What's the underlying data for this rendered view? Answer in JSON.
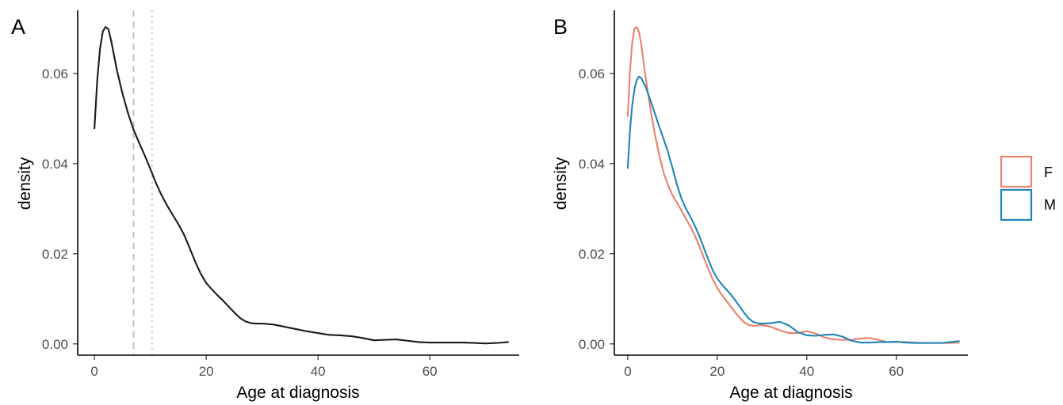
{
  "chart_data": [
    {
      "panel": "A",
      "type": "line",
      "title": "",
      "xlabel": "Age at diagnosis",
      "ylabel": "density",
      "xlim": [
        -3,
        76
      ],
      "ylim": [
        -0.0025,
        0.074
      ],
      "xticks": [
        "0",
        "20",
        "40",
        "60"
      ],
      "yticks": [
        "0.00",
        "0.02",
        "0.04",
        "0.06"
      ],
      "grid": false,
      "reference_lines": [
        {
          "x": 7,
          "style": "dashed",
          "color": "#bdbdbd"
        },
        {
          "x": 10.3,
          "style": "dotted",
          "color": "#bdbdbd"
        }
      ],
      "series": [
        {
          "color": "#1a1a1a",
          "x": [
            0,
            0.5,
            1,
            1.5,
            2,
            2.5,
            3,
            4,
            5,
            6,
            7,
            8,
            9,
            10,
            11,
            12,
            13,
            14,
            15,
            16,
            17,
            18,
            19,
            20,
            21,
            22,
            23,
            24,
            25,
            26,
            27,
            28,
            29,
            30,
            32,
            34,
            36,
            38,
            40,
            42,
            44,
            46,
            48,
            50,
            52,
            54,
            56,
            58,
            60,
            62,
            64,
            66,
            68,
            70,
            72,
            74
          ],
          "y": [
            0.0478,
            0.0585,
            0.0655,
            0.0693,
            0.0703,
            0.0698,
            0.0672,
            0.0608,
            0.0556,
            0.0512,
            0.0475,
            0.0446,
            0.0418,
            0.0388,
            0.0357,
            0.033,
            0.0307,
            0.0286,
            0.0266,
            0.0243,
            0.0214,
            0.0183,
            0.0156,
            0.0135,
            0.0121,
            0.0108,
            0.0096,
            0.0083,
            0.007,
            0.0058,
            0.005,
            0.0046,
            0.0045,
            0.0045,
            0.0043,
            0.0038,
            0.0033,
            0.0028,
            0.0024,
            0.002,
            0.0019,
            0.0017,
            0.0013,
            0.0008,
            0.0009,
            0.001,
            0.0007,
            0.0004,
            0.0003,
            0.0003,
            0.0003,
            0.0003,
            0.0002,
            0.0001,
            0.0002,
            0.0004
          ]
        }
      ]
    },
    {
      "panel": "B",
      "type": "line",
      "title": "",
      "xlabel": "Age at diagnosis",
      "ylabel": "density",
      "xlim": [
        -3,
        76
      ],
      "ylim": [
        -0.0025,
        0.074
      ],
      "xticks": [
        "0",
        "20",
        "40",
        "60"
      ],
      "yticks": [
        "0.00",
        "0.02",
        "0.04",
        "0.06"
      ],
      "grid": false,
      "legend": {
        "position": "right",
        "entries": [
          "F",
          "M"
        ]
      },
      "series": [
        {
          "name": "F",
          "color": "#e8826a",
          "x": [
            0,
            0.5,
            1,
            1.5,
            2,
            2.5,
            3,
            4,
            5,
            6,
            7,
            8,
            9,
            10,
            11,
            12,
            13,
            14,
            15,
            16,
            17,
            18,
            19,
            20,
            21,
            22,
            23,
            24,
            25,
            26,
            27,
            28,
            29,
            30,
            32,
            34,
            36,
            38,
            40,
            42,
            44,
            46,
            48,
            50,
            52,
            54,
            56,
            58,
            60,
            62,
            64,
            66,
            68,
            70,
            72,
            74
          ],
          "y": [
            0.0505,
            0.0607,
            0.0668,
            0.07,
            0.0703,
            0.0692,
            0.0665,
            0.059,
            0.0525,
            0.0468,
            0.042,
            0.038,
            0.0352,
            0.033,
            0.0313,
            0.0296,
            0.0278,
            0.026,
            0.024,
            0.0217,
            0.0191,
            0.0166,
            0.0143,
            0.0124,
            0.0109,
            0.0096,
            0.0083,
            0.007,
            0.0058,
            0.0048,
            0.0042,
            0.004,
            0.0041,
            0.0042,
            0.0038,
            0.003,
            0.0024,
            0.0024,
            0.0028,
            0.0023,
            0.0014,
            0.001,
            0.0009,
            0.0009,
            0.0012,
            0.0013,
            0.0009,
            0.0004,
            0.0004,
            0.0004,
            0.0003,
            0.0002,
            0.0002,
            0.0002,
            0.0002,
            0.0003
          ]
        },
        {
          "name": "M",
          "color": "#1f85b8",
          "x": [
            0,
            0.5,
            1,
            1.5,
            2,
            2.5,
            3,
            4,
            5,
            6,
            7,
            8,
            9,
            10,
            11,
            12,
            13,
            14,
            15,
            16,
            17,
            18,
            19,
            20,
            21,
            22,
            23,
            24,
            25,
            26,
            27,
            28,
            29,
            30,
            32,
            34,
            36,
            38,
            40,
            42,
            44,
            46,
            48,
            50,
            52,
            54,
            56,
            58,
            60,
            62,
            64,
            66,
            68,
            70,
            72,
            74
          ],
          "y": [
            0.039,
            0.0475,
            0.053,
            0.0565,
            0.0585,
            0.0593,
            0.059,
            0.057,
            0.0542,
            0.0513,
            0.0483,
            0.0455,
            0.0425,
            0.039,
            0.0353,
            0.0322,
            0.03,
            0.0282,
            0.0262,
            0.0239,
            0.0213,
            0.0187,
            0.0163,
            0.0145,
            0.0132,
            0.0121,
            0.011,
            0.0097,
            0.0083,
            0.0069,
            0.0057,
            0.0049,
            0.0046,
            0.0045,
            0.0046,
            0.0049,
            0.0041,
            0.0026,
            0.0019,
            0.0018,
            0.002,
            0.0021,
            0.0016,
            0.0007,
            0.0003,
            0.0003,
            0.0004,
            0.0004,
            0.0005,
            0.0003,
            0.0002,
            0.0002,
            0.0002,
            0.0002,
            0.0004,
            0.0006
          ]
        }
      ]
    }
  ]
}
